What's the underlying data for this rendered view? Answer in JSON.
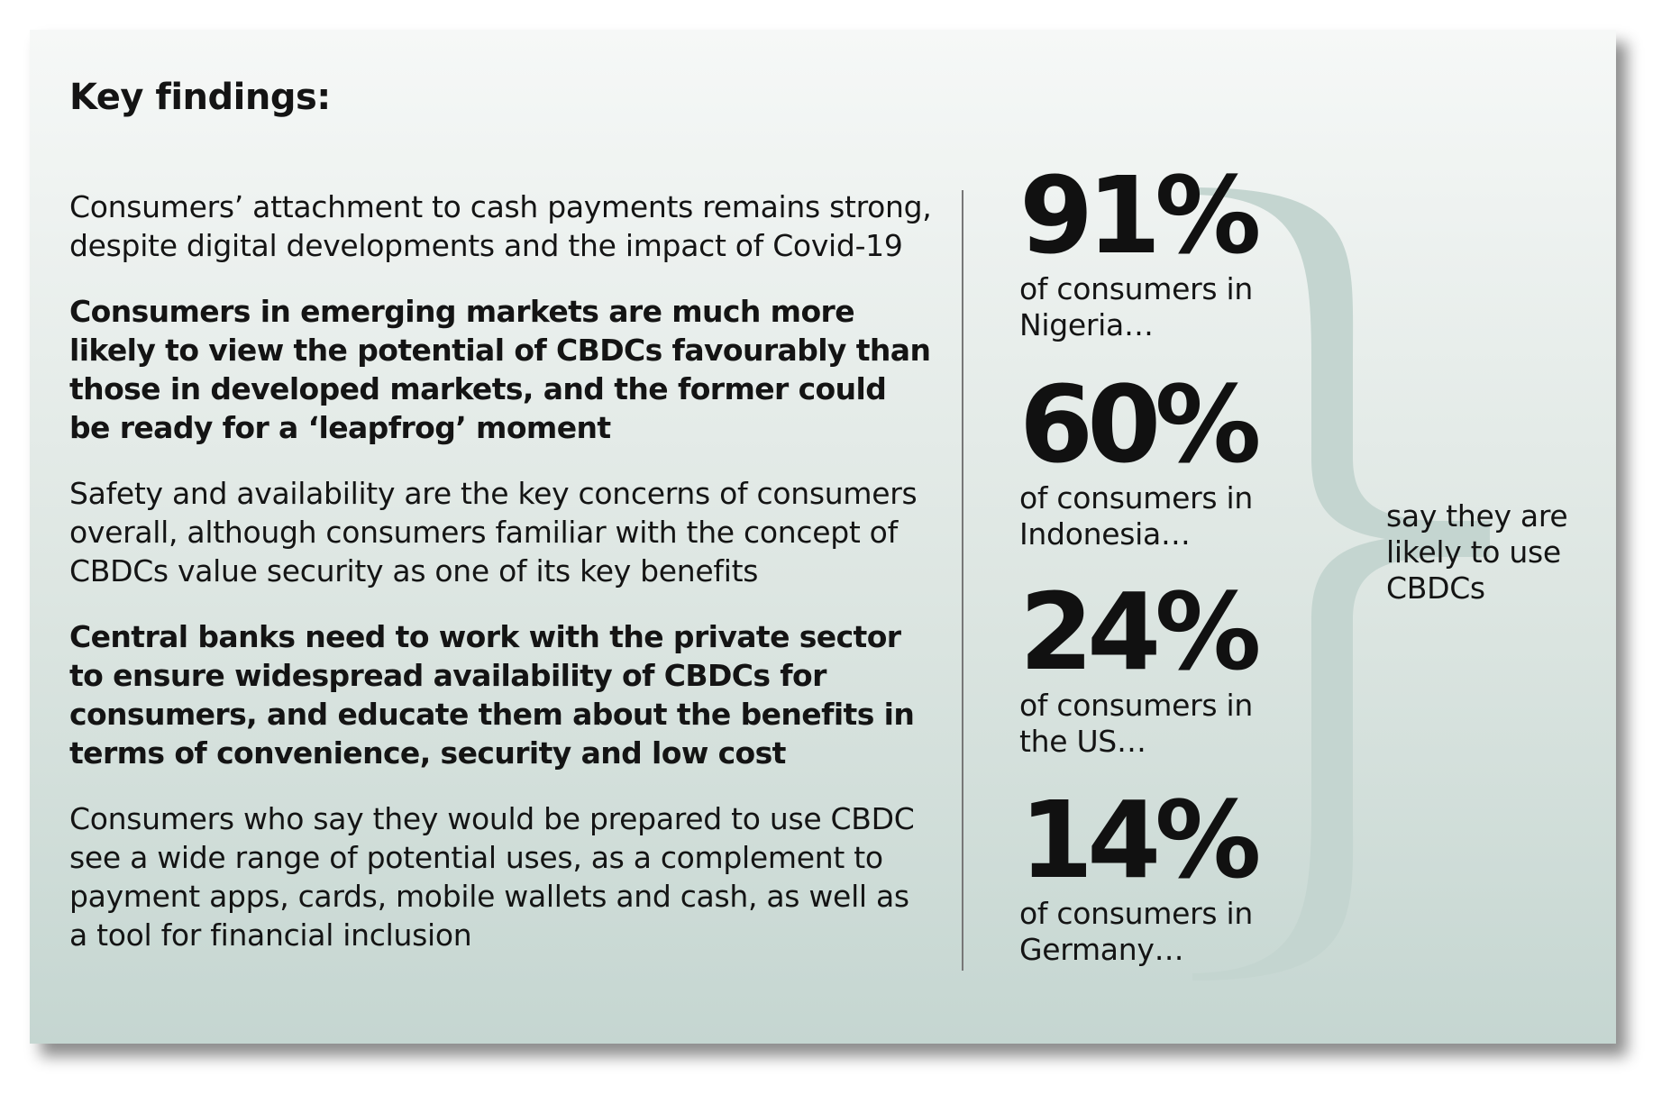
{
  "heading": "Key findings:",
  "findings": [
    {
      "text": "Consumers’ attachment to cash payments remains strong, despite digital developments and the impact of Covid-19",
      "bold": false
    },
    {
      "text": "Consumers in emerging markets are much more likely to view the potential of CBDCs favourably than those in developed markets, and the former could be ready for a ‘leapfrog’ moment",
      "bold": true
    },
    {
      "text": "Safety and availability are the key concerns of consumers overall, although consumers familiar with the concept of CBDCs value security as one of its key benefits",
      "bold": false
    },
    {
      "text": "Central banks need to work with the private sector to ensure widespread availability of CBDCs for consumers, and educate them about the benefits in terms of convenience, security and low cost",
      "bold": true
    },
    {
      "text": "Consumers who say they would be prepared to use CBDC see a wide range of potential uses, as a complement to payment apps, cards, mobile wallets and cash, as well as a tool for financial inclusion",
      "bold": false
    }
  ],
  "stats": [
    {
      "value": "91%",
      "label": "of consumers in Nigeria…"
    },
    {
      "value": "60%",
      "label": "of consumers in Indonesia…"
    },
    {
      "value": "24%",
      "label": "of consumers in the US…"
    },
    {
      "value": "14%",
      "label": "of consumers in Germany…"
    }
  ],
  "summary": "say they are likely to use CBDCs",
  "colors": {
    "brace": "#c4d5d0",
    "text": "#141414"
  }
}
